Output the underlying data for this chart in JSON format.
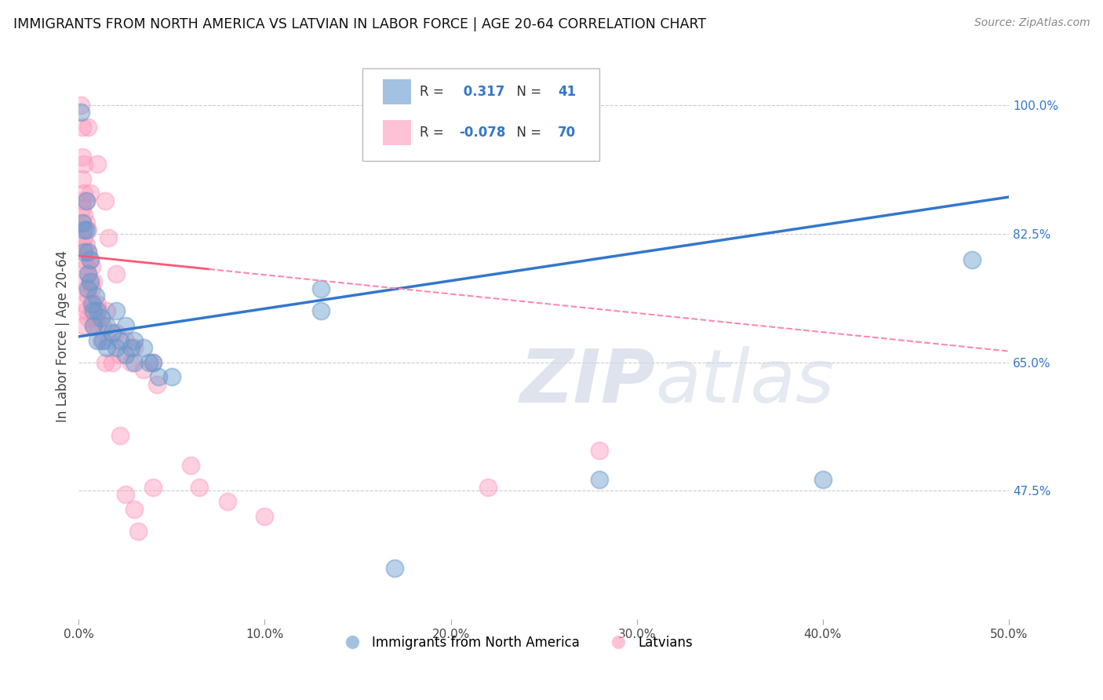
{
  "title": "IMMIGRANTS FROM NORTH AMERICA VS LATVIAN IN LABOR FORCE | AGE 20-64 CORRELATION CHART",
  "source": "Source: ZipAtlas.com",
  "ylabel": "In Labor Force | Age 20-64",
  "xlim": [
    0.0,
    0.5
  ],
  "ylim": [
    0.3,
    1.07
  ],
  "xtick_labels": [
    "0.0%",
    "",
    "",
    "",
    "",
    "10.0%",
    "",
    "",
    "",
    "",
    "20.0%",
    "",
    "",
    "",
    "",
    "30.0%",
    "",
    "",
    "",
    "",
    "40.0%",
    "",
    "",
    "",
    "",
    "50.0%"
  ],
  "xtick_vals": [
    0.0,
    0.02,
    0.04,
    0.06,
    0.08,
    0.1,
    0.12,
    0.14,
    0.16,
    0.18,
    0.2,
    0.22,
    0.24,
    0.26,
    0.28,
    0.3,
    0.32,
    0.34,
    0.36,
    0.38,
    0.4,
    0.42,
    0.44,
    0.46,
    0.48,
    0.5
  ],
  "xtick_major_labels": [
    "0.0%",
    "10.0%",
    "20.0%",
    "30.0%",
    "40.0%",
    "50.0%"
  ],
  "xtick_major_vals": [
    0.0,
    0.1,
    0.2,
    0.3,
    0.4,
    0.5
  ],
  "ytick_labels": [
    "47.5%",
    "65.0%",
    "82.5%",
    "100.0%"
  ],
  "ytick_vals": [
    0.475,
    0.65,
    0.825,
    1.0
  ],
  "R_blue": "0.317",
  "N_blue": 41,
  "R_pink": "-0.078",
  "N_pink": 70,
  "watermark_zip": "ZIP",
  "watermark_atlas": "atlas",
  "blue_color": "#6699CC",
  "pink_color": "#FF99BB",
  "blue_trend_x": [
    0.0,
    0.5
  ],
  "blue_trend_y": [
    0.685,
    0.875
  ],
  "pink_trend_x": [
    0.0,
    0.5
  ],
  "pink_trend_y": [
    0.795,
    0.665
  ],
  "pink_trend_solid_end": 0.07,
  "legend_blue_label": "Immigrants from North America",
  "legend_pink_label": "Latvians",
  "background_color": "#ffffff",
  "grid_color": "#cccccc",
  "blue_scatter": [
    [
      0.001,
      0.99
    ],
    [
      0.002,
      0.84
    ],
    [
      0.003,
      0.83
    ],
    [
      0.003,
      0.8
    ],
    [
      0.004,
      0.87
    ],
    [
      0.004,
      0.83
    ],
    [
      0.005,
      0.8
    ],
    [
      0.005,
      0.77
    ],
    [
      0.005,
      0.75
    ],
    [
      0.006,
      0.79
    ],
    [
      0.006,
      0.76
    ],
    [
      0.007,
      0.73
    ],
    [
      0.008,
      0.72
    ],
    [
      0.008,
      0.7
    ],
    [
      0.009,
      0.74
    ],
    [
      0.01,
      0.72
    ],
    [
      0.01,
      0.68
    ],
    [
      0.012,
      0.71
    ],
    [
      0.013,
      0.68
    ],
    [
      0.015,
      0.7
    ],
    [
      0.015,
      0.67
    ],
    [
      0.018,
      0.69
    ],
    [
      0.02,
      0.67
    ],
    [
      0.02,
      0.72
    ],
    [
      0.022,
      0.68
    ],
    [
      0.025,
      0.7
    ],
    [
      0.025,
      0.66
    ],
    [
      0.028,
      0.67
    ],
    [
      0.03,
      0.68
    ],
    [
      0.03,
      0.65
    ],
    [
      0.035,
      0.67
    ],
    [
      0.038,
      0.65
    ],
    [
      0.04,
      0.65
    ],
    [
      0.043,
      0.63
    ],
    [
      0.05,
      0.63
    ],
    [
      0.13,
      0.75
    ],
    [
      0.13,
      0.72
    ],
    [
      0.17,
      0.37
    ],
    [
      0.28,
      0.49
    ],
    [
      0.4,
      0.49
    ],
    [
      0.48,
      0.79
    ]
  ],
  "pink_scatter": [
    [
      0.001,
      1.0
    ],
    [
      0.002,
      0.97
    ],
    [
      0.002,
      0.93
    ],
    [
      0.002,
      0.9
    ],
    [
      0.002,
      0.87
    ],
    [
      0.002,
      0.84
    ],
    [
      0.002,
      0.81
    ],
    [
      0.002,
      0.86
    ],
    [
      0.003,
      0.92
    ],
    [
      0.003,
      0.88
    ],
    [
      0.003,
      0.85
    ],
    [
      0.003,
      0.82
    ],
    [
      0.003,
      0.79
    ],
    [
      0.003,
      0.76
    ],
    [
      0.003,
      0.73
    ],
    [
      0.003,
      0.7
    ],
    [
      0.004,
      0.87
    ],
    [
      0.004,
      0.84
    ],
    [
      0.004,
      0.81
    ],
    [
      0.004,
      0.78
    ],
    [
      0.004,
      0.75
    ],
    [
      0.004,
      0.72
    ],
    [
      0.005,
      0.83
    ],
    [
      0.005,
      0.8
    ],
    [
      0.005,
      0.77
    ],
    [
      0.005,
      0.74
    ],
    [
      0.005,
      0.71
    ],
    [
      0.006,
      0.79
    ],
    [
      0.006,
      0.76
    ],
    [
      0.007,
      0.78
    ],
    [
      0.007,
      0.75
    ],
    [
      0.007,
      0.72
    ],
    [
      0.008,
      0.76
    ],
    [
      0.008,
      0.73
    ],
    [
      0.008,
      0.7
    ],
    [
      0.009,
      0.71
    ],
    [
      0.01,
      0.73
    ],
    [
      0.01,
      0.7
    ],
    [
      0.011,
      0.72
    ],
    [
      0.012,
      0.68
    ],
    [
      0.013,
      0.7
    ],
    [
      0.014,
      0.65
    ],
    [
      0.015,
      0.72
    ],
    [
      0.016,
      0.68
    ],
    [
      0.018,
      0.65
    ],
    [
      0.02,
      0.69
    ],
    [
      0.022,
      0.66
    ],
    [
      0.025,
      0.68
    ],
    [
      0.028,
      0.65
    ],
    [
      0.03,
      0.67
    ],
    [
      0.035,
      0.64
    ],
    [
      0.04,
      0.65
    ],
    [
      0.042,
      0.62
    ],
    [
      0.005,
      0.97
    ],
    [
      0.006,
      0.88
    ],
    [
      0.01,
      0.92
    ],
    [
      0.014,
      0.87
    ],
    [
      0.016,
      0.82
    ],
    [
      0.02,
      0.77
    ],
    [
      0.022,
      0.55
    ],
    [
      0.025,
      0.47
    ],
    [
      0.03,
      0.45
    ],
    [
      0.032,
      0.42
    ],
    [
      0.04,
      0.48
    ],
    [
      0.06,
      0.51
    ],
    [
      0.065,
      0.48
    ],
    [
      0.08,
      0.46
    ],
    [
      0.1,
      0.44
    ],
    [
      0.22,
      0.48
    ],
    [
      0.28,
      0.53
    ]
  ]
}
